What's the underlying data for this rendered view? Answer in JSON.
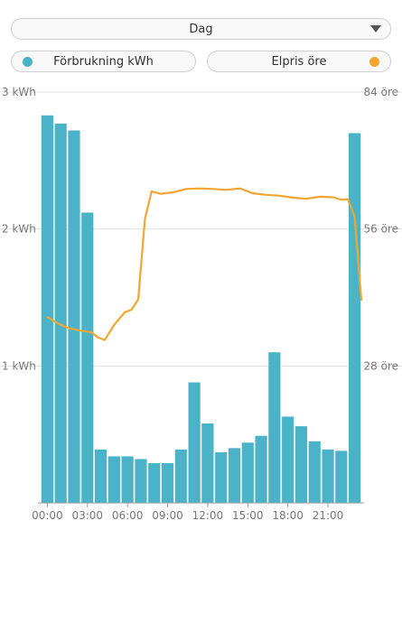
{
  "period_selector": {
    "label": "Dag",
    "icon": "caret-down-icon"
  },
  "legend": {
    "consumption_label": "Förbrukning kWh",
    "price_label": "Elpris öre"
  },
  "colors": {
    "bars": "#4bb3c8",
    "line": "#f2a531",
    "grid": "#e2e2e2",
    "axis_text": "#777777"
  },
  "chart_data": {
    "type": "bar",
    "title": "",
    "x_tick_labels": [
      "00:00",
      "03:00",
      "06:00",
      "09:00",
      "12:00",
      "15:00",
      "18:00",
      "21:00"
    ],
    "categories": [
      "00",
      "01",
      "02",
      "03",
      "04",
      "05",
      "06",
      "07",
      "08",
      "09",
      "10",
      "11",
      "12",
      "13",
      "14",
      "15",
      "16",
      "17",
      "18",
      "19",
      "20",
      "21",
      "22",
      "23"
    ],
    "y_left": {
      "unit": "kWh",
      "ylim": [
        0,
        3
      ],
      "tick_labels": [
        "1 kWh",
        "2 kWh",
        "3 kWh"
      ],
      "tick_values": [
        1,
        2,
        3
      ]
    },
    "y_right": {
      "unit": "öre",
      "ylim": [
        0,
        84
      ],
      "tick_labels": [
        "28 öre",
        "56 öre",
        "84 öre"
      ],
      "tick_values": [
        28,
        56,
        84
      ]
    },
    "grid": true,
    "series": [
      {
        "name": "Förbrukning kWh",
        "type": "bar",
        "axis": "left",
        "values": [
          2.83,
          2.77,
          2.72,
          2.12,
          0.39,
          0.34,
          0.34,
          0.32,
          0.29,
          0.29,
          0.39,
          0.88,
          0.58,
          0.37,
          0.4,
          0.44,
          0.49,
          1.1,
          0.63,
          0.56,
          0.45,
          0.39,
          0.38,
          2.7
        ]
      },
      {
        "name": "Elpris öre",
        "type": "line",
        "axis": "right",
        "x": [
          0,
          0.8,
          1.6,
          2.5,
          3.3,
          3.8,
          4.3,
          5.0,
          5.8,
          6.3,
          6.8,
          7.3,
          7.8,
          8.5,
          9.4,
          10.4,
          11.4,
          12.4,
          13.4,
          14.4,
          15.4,
          16.4,
          17.4,
          18.4,
          19.4,
          20.4,
          21.4,
          22.0,
          22.5,
          23.0,
          23.5
        ],
        "values": [
          38.0,
          36.7,
          35.7,
          35.2,
          34.9,
          33.8,
          33.3,
          36.4,
          39.0,
          39.5,
          41.6,
          58.0,
          63.7,
          63.2,
          63.5,
          64.2,
          64.3,
          64.2,
          64.0,
          64.3,
          63.3,
          63.0,
          62.8,
          62.4,
          62.2,
          62.6,
          62.5,
          62.0,
          62.1,
          58.5,
          41.5
        ]
      }
    ]
  }
}
